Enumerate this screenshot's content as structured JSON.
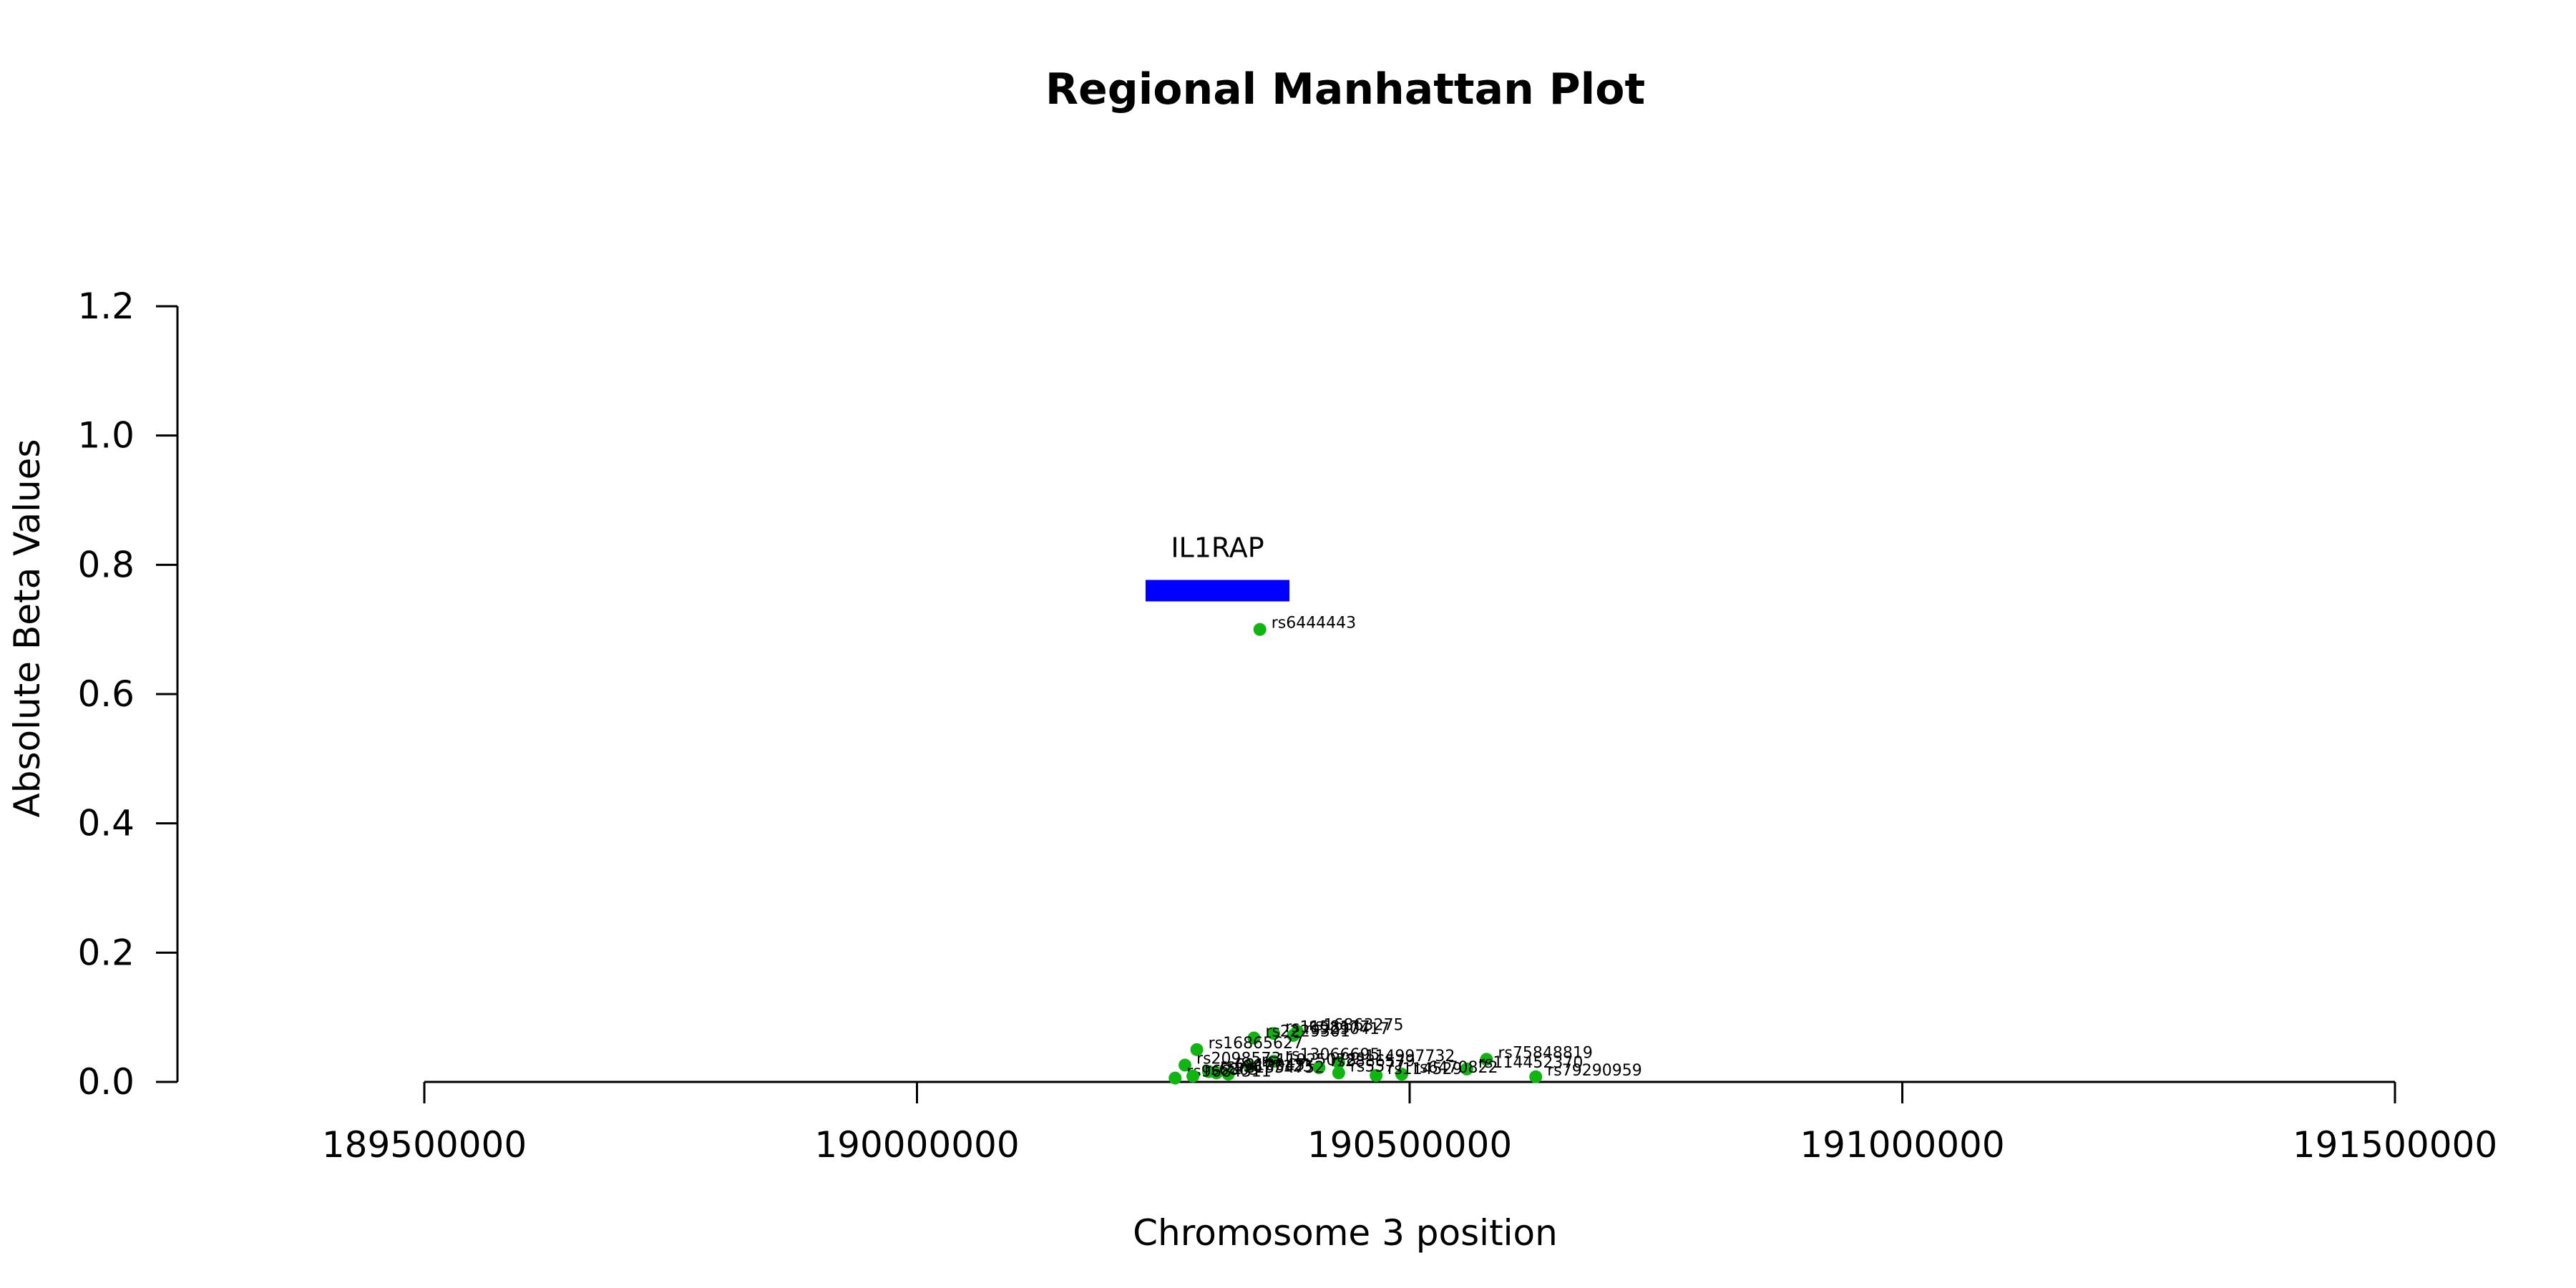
{
  "chart_data": {
    "type": "scatter",
    "title": "Regional Manhattan Plot",
    "xlabel": "Chromosome 3 position",
    "ylabel": "Absolute Beta Values",
    "xlim": [
      189500000,
      191500000
    ],
    "ylim": [
      0,
      1.2
    ],
    "xticks": [
      "189500000",
      "190000000",
      "190500000",
      "191000000",
      "191500000"
    ],
    "xtick_values": [
      189500000,
      190000000,
      190500000,
      191000000,
      191500000
    ],
    "yticks": [
      "0.0",
      "0.2",
      "0.4",
      "0.6",
      "0.8",
      "1.0",
      "1.2"
    ],
    "ytick_values": [
      0.0,
      0.2,
      0.4,
      0.6,
      0.8,
      1.0,
      1.2
    ],
    "point_color": "#11b511",
    "gene_color": "#0000ff",
    "genes": [
      {
        "name": "IL1RAP",
        "start": 190232000,
        "end": 190378000,
        "y": 0.76
      }
    ],
    "points": [
      {
        "label": "rs6444443",
        "x": 190348000,
        "y": 0.7
      },
      {
        "label": "rs16863275",
        "x": 190386000,
        "y": 0.078
      },
      {
        "label": "rs9290417",
        "x": 190382000,
        "y": 0.072
      },
      {
        "label": "rs1158177",
        "x": 190362000,
        "y": 0.075
      },
      {
        "label": "rs2229301",
        "x": 190342000,
        "y": 0.068
      },
      {
        "label": "rs16865627",
        "x": 190284000,
        "y": 0.05
      },
      {
        "label": "rs75848819",
        "x": 190578000,
        "y": 0.035
      },
      {
        "label": "rs114997732",
        "x": 190428000,
        "y": 0.03
      },
      {
        "label": "rs13066695",
        "x": 190362000,
        "y": 0.032
      },
      {
        "label": "rs2098573",
        "x": 190272000,
        "y": 0.026
      },
      {
        "label": "rs11925078",
        "x": 190338000,
        "y": 0.024
      },
      {
        "label": "rs2886579",
        "x": 190408000,
        "y": 0.022
      },
      {
        "label": "rs114452370",
        "x": 190558000,
        "y": 0.02
      },
      {
        "label": "rs79290959",
        "x": 190628000,
        "y": 0.008
      },
      {
        "label": "rs6470822",
        "x": 190492000,
        "y": 0.012
      },
      {
        "label": "rs114529",
        "x": 190466000,
        "y": 0.01
      },
      {
        "label": "rs5577",
        "x": 190428000,
        "y": 0.014
      },
      {
        "label": "rs9877123",
        "x": 190304000,
        "y": 0.014
      },
      {
        "label": "rs6810045",
        "x": 190296000,
        "y": 0.016
      },
      {
        "label": "rs1354752",
        "x": 190316000,
        "y": 0.012
      },
      {
        "label": "rs9684311",
        "x": 190262000,
        "y": 0.006
      },
      {
        "label": "rs6805",
        "x": 190280000,
        "y": 0.009
      }
    ]
  }
}
